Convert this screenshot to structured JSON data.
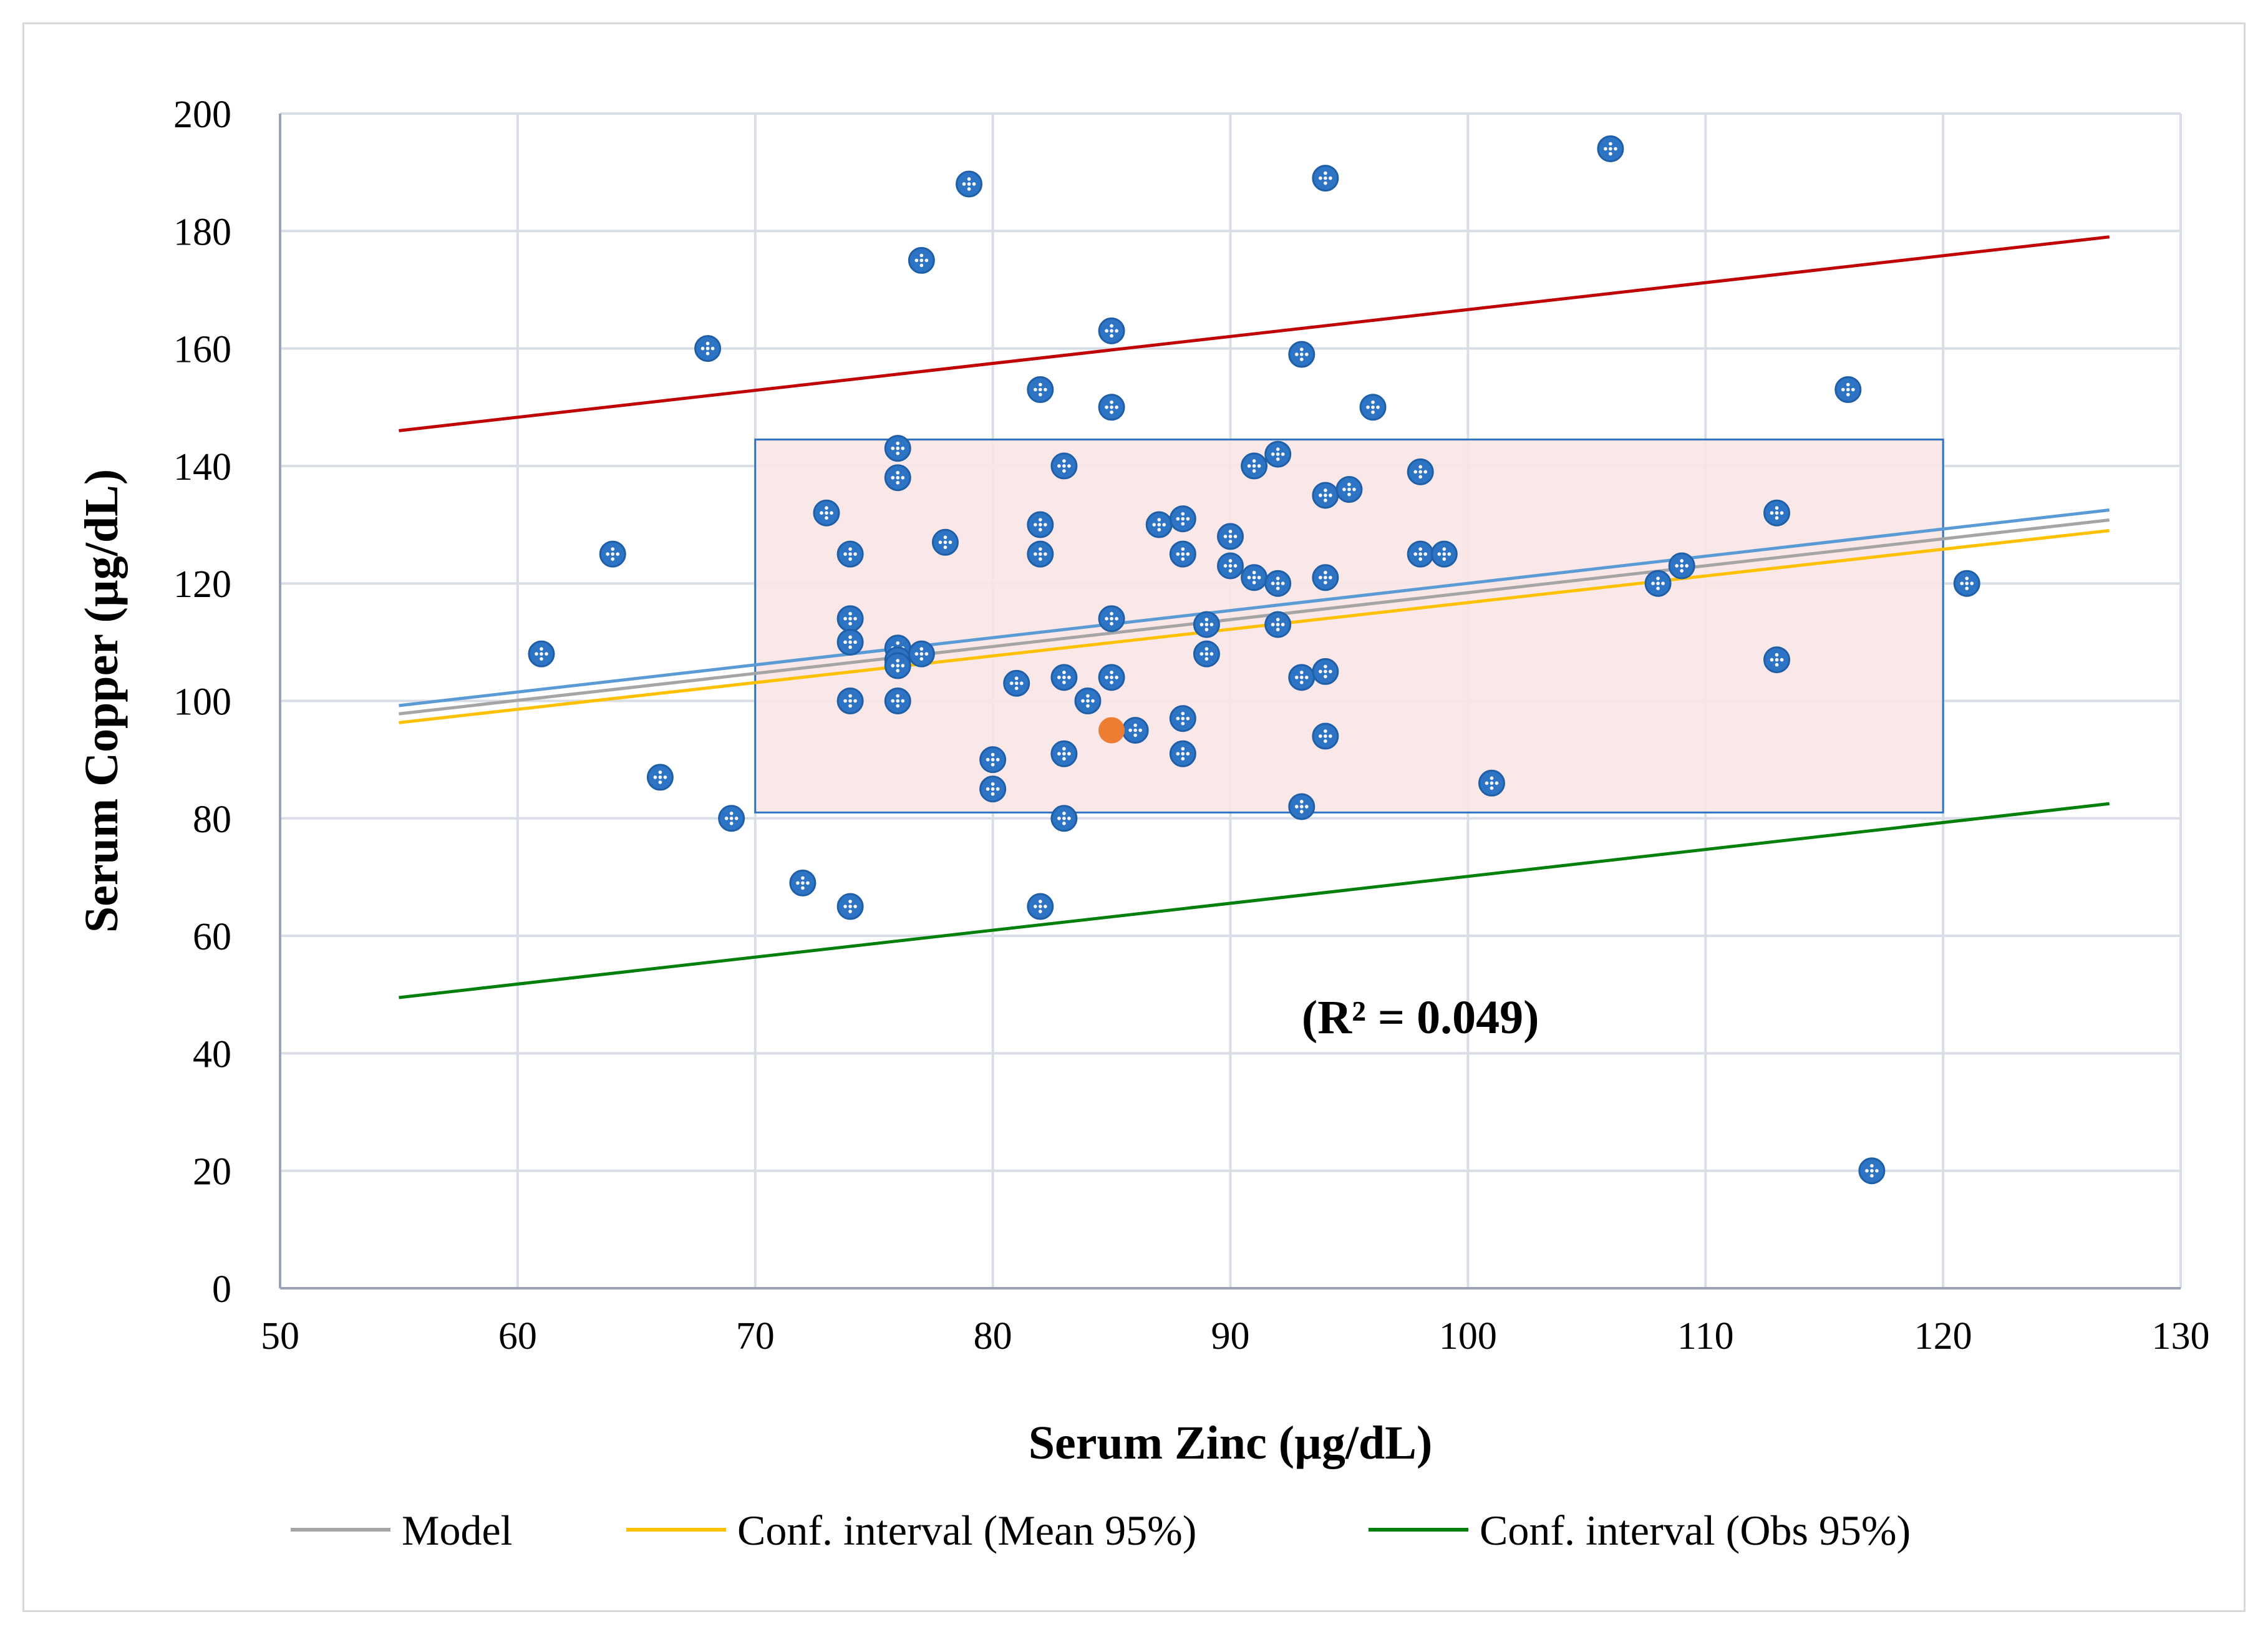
{
  "chart_data": {
    "type": "scatter",
    "title": "",
    "xlabel": "Serum Zinc (µg/dL)",
    "ylabel": "Serum Copper (µg/dL)",
    "xlim": [
      50,
      130
    ],
    "ylim": [
      0,
      200
    ],
    "xticks": [
      "50",
      "60",
      "70",
      "80",
      "90",
      "100",
      "110",
      "120",
      "130"
    ],
    "yticks": [
      "0",
      "20",
      "40",
      "60",
      "80",
      "100",
      "120",
      "140",
      "160",
      "180",
      "200"
    ],
    "grid": true,
    "annotation": "(R² = 0.049)",
    "colors": {
      "points": "#2e74c4",
      "highlight": "#ed7d31",
      "model": "#a5a5a5",
      "mean_ci_lower": "#ffc000",
      "mean_ci_upper": "#5b9bd5",
      "obs_ci_upper": "#c00000",
      "obs_ci_lower": "#00800a",
      "box_fill": "#f8e5e4",
      "box_stroke": "#2e74c4",
      "grid": "#d9dde6"
    },
    "points": [
      {
        "x": 61,
        "y": 108
      },
      {
        "x": 64,
        "y": 125
      },
      {
        "x": 66,
        "y": 87
      },
      {
        "x": 68,
        "y": 160
      },
      {
        "x": 69,
        "y": 80
      },
      {
        "x": 72,
        "y": 69
      },
      {
        "x": 73,
        "y": 132
      },
      {
        "x": 74,
        "y": 125
      },
      {
        "x": 74,
        "y": 114
      },
      {
        "x": 74,
        "y": 110
      },
      {
        "x": 74,
        "y": 100
      },
      {
        "x": 74,
        "y": 65
      },
      {
        "x": 76,
        "y": 143
      },
      {
        "x": 76,
        "y": 138
      },
      {
        "x": 76,
        "y": 109
      },
      {
        "x": 76,
        "y": 107
      },
      {
        "x": 76,
        "y": 106
      },
      {
        "x": 76,
        "y": 100
      },
      {
        "x": 77,
        "y": 175
      },
      {
        "x": 77,
        "y": 108
      },
      {
        "x": 78,
        "y": 127
      },
      {
        "x": 79,
        "y": 188
      },
      {
        "x": 80,
        "y": 90
      },
      {
        "x": 80,
        "y": 85
      },
      {
        "x": 81,
        "y": 103
      },
      {
        "x": 82,
        "y": 153
      },
      {
        "x": 82,
        "y": 130
      },
      {
        "x": 82,
        "y": 125
      },
      {
        "x": 82,
        "y": 65
      },
      {
        "x": 83,
        "y": 140
      },
      {
        "x": 83,
        "y": 104
      },
      {
        "x": 83,
        "y": 91
      },
      {
        "x": 83,
        "y": 80
      },
      {
        "x": 84,
        "y": 100
      },
      {
        "x": 85,
        "y": 163
      },
      {
        "x": 85,
        "y": 150
      },
      {
        "x": 85,
        "y": 114
      },
      {
        "x": 85,
        "y": 104
      },
      {
        "x": 86,
        "y": 95
      },
      {
        "x": 87,
        "y": 130
      },
      {
        "x": 88,
        "y": 131
      },
      {
        "x": 88,
        "y": 125
      },
      {
        "x": 88,
        "y": 97
      },
      {
        "x": 88,
        "y": 91
      },
      {
        "x": 89,
        "y": 113
      },
      {
        "x": 89,
        "y": 108
      },
      {
        "x": 90,
        "y": 128
      },
      {
        "x": 90,
        "y": 123
      },
      {
        "x": 91,
        "y": 140
      },
      {
        "x": 91,
        "y": 121
      },
      {
        "x": 92,
        "y": 142
      },
      {
        "x": 92,
        "y": 120
      },
      {
        "x": 92,
        "y": 113
      },
      {
        "x": 93,
        "y": 159
      },
      {
        "x": 93,
        "y": 104
      },
      {
        "x": 93,
        "y": 82
      },
      {
        "x": 94,
        "y": 189
      },
      {
        "x": 94,
        "y": 135
      },
      {
        "x": 94,
        "y": 121
      },
      {
        "x": 94,
        "y": 105
      },
      {
        "x": 94,
        "y": 94
      },
      {
        "x": 95,
        "y": 136
      },
      {
        "x": 96,
        "y": 150
      },
      {
        "x": 98,
        "y": 139
      },
      {
        "x": 98,
        "y": 125
      },
      {
        "x": 99,
        "y": 125
      },
      {
        "x": 101,
        "y": 86
      },
      {
        "x": 106,
        "y": 194
      },
      {
        "x": 108,
        "y": 120
      },
      {
        "x": 109,
        "y": 123
      },
      {
        "x": 113,
        "y": 132
      },
      {
        "x": 113,
        "y": 107
      },
      {
        "x": 116,
        "y": 153
      },
      {
        "x": 117,
        "y": 20
      },
      {
        "x": 121,
        "y": 120
      }
    ],
    "highlight_point": {
      "x": 85,
      "y": 95
    },
    "box": {
      "x": [
        70,
        120
      ],
      "y": [
        81,
        144.5
      ]
    },
    "lines": [
      {
        "key": "model",
        "name": "Model",
        "x": [
          55,
          127
        ],
        "y": [
          97.8,
          130.8
        ]
      },
      {
        "key": "mean_ci_lower",
        "name": "Conf. interval (Mean 95%)",
        "x": [
          55,
          127
        ],
        "y": [
          96.3,
          129.0
        ]
      },
      {
        "key": "mean_ci_upper",
        "name": "",
        "x": [
          55,
          127
        ],
        "y": [
          99.2,
          132.5
        ]
      },
      {
        "key": "obs_ci_upper",
        "name": "",
        "x": [
          55,
          127
        ],
        "y": [
          146.0,
          179.0
        ]
      },
      {
        "key": "obs_ci_lower",
        "name": "Conf. interval (Obs 95%)",
        "x": [
          55,
          127
        ],
        "y": [
          49.5,
          82.5
        ]
      }
    ],
    "legend": {
      "position": "bottom",
      "items": [
        {
          "label": "Model",
          "color": "#a5a5a5"
        },
        {
          "label": "Conf. interval (Mean 95%)",
          "color": "#ffc000"
        },
        {
          "label": "Conf. interval (Obs 95%)",
          "color": "#00800a"
        }
      ]
    }
  }
}
